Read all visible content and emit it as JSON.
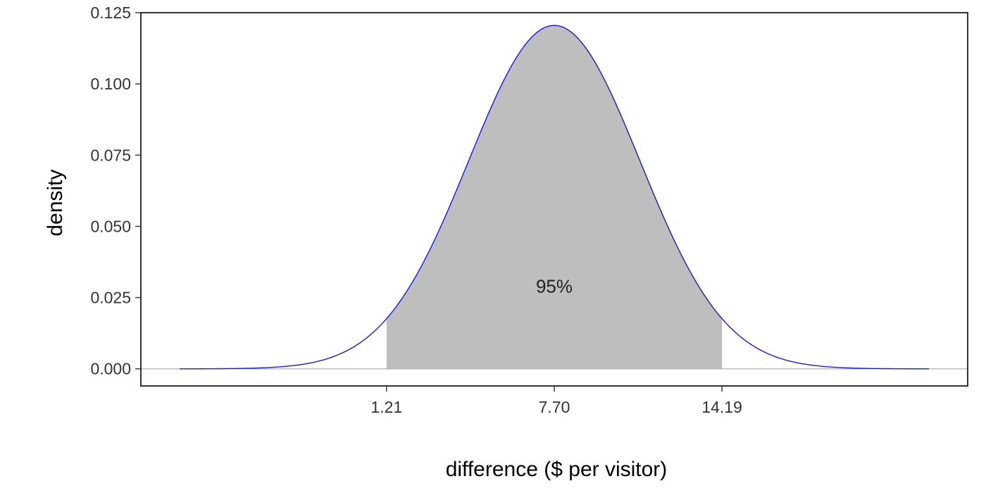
{
  "chart_data": {
    "type": "area",
    "distribution": "normal",
    "mean": 7.7,
    "sd": 3.31,
    "x_range": [
      -6.8,
      22.2
    ],
    "ylim": [
      -0.006,
      0.125
    ],
    "xlabel": "difference ($ per visitor)",
    "ylabel": "density",
    "x_ticks": [
      {
        "value": 1.21,
        "label": "1.21"
      },
      {
        "value": 7.7,
        "label": "7.70"
      },
      {
        "value": 14.19,
        "label": "14.19"
      }
    ],
    "y_ticks": [
      {
        "value": 0,
        "label": "0.000"
      },
      {
        "value": 0.025,
        "label": "0.025"
      },
      {
        "value": 0.05,
        "label": "0.050"
      },
      {
        "value": 0.075,
        "label": "0.075"
      },
      {
        "value": 0.1,
        "label": "0.100"
      },
      {
        "value": 0.125,
        "label": "0.125"
      }
    ],
    "shaded_interval": [
      1.21,
      14.19
    ],
    "annotation": {
      "text": "95%",
      "x": 7.7,
      "y": 0.029
    },
    "grid": false,
    "legend": "none",
    "colors": {
      "curve": "#1a1adb",
      "fill": "#bebebe",
      "baseline": "#b3b3b3",
      "frame": "#000000"
    }
  }
}
